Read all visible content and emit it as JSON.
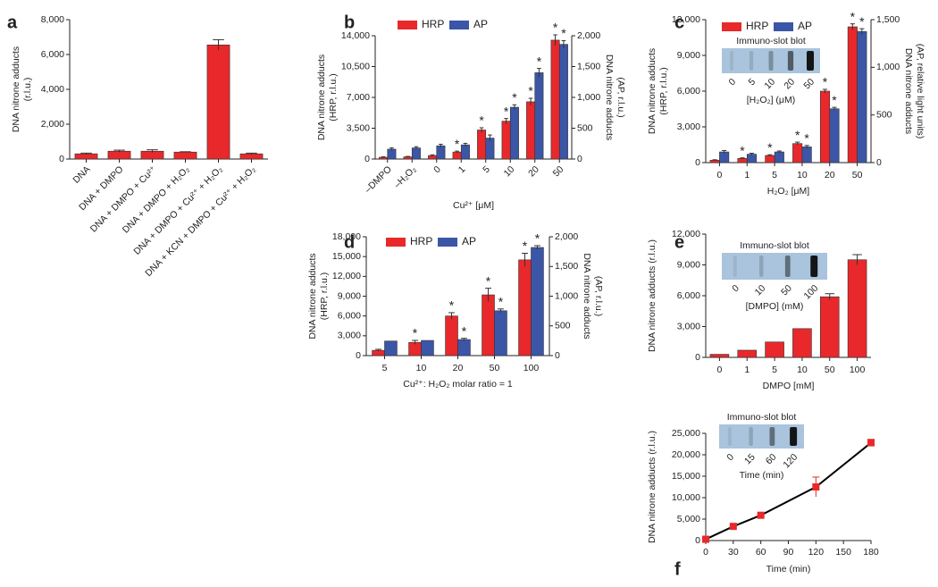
{
  "chart_data": [
    {
      "type": "bar",
      "panel": "a",
      "categories": [
        "DNA",
        "DNA + DMPO",
        "DNA + DMPO + Cu²⁺",
        "DNA + DMPO + H₂O₂",
        "DNA + DMPO + Cu²⁺ + H₂O₂",
        "DNA + KCN + DMPO + Cu²⁺ + H₂O₂"
      ],
      "values": [
        300,
        450,
        450,
        400,
        6550,
        300
      ],
      "errors": [
        40,
        60,
        80,
        20,
        300,
        40
      ],
      "color": "#e8282b",
      "ylabel": [
        "DNA nitrone adducts",
        "(r.l.u.)"
      ],
      "ylim": [
        0,
        8000
      ],
      "yticks": [
        0,
        {
          "value": 2000,
          "label": "2,000"
        },
        {
          "value": 4000,
          "label": "4,000"
        },
        {
          "value": 6000,
          "label": "6,000"
        },
        {
          "value": 8000,
          "label": "8,000"
        }
      ],
      "grid": false
    },
    {
      "type": "bar",
      "panel": "b",
      "categories": [
        "–DMPO",
        "–H₂O₂",
        "0",
        "1",
        "5",
        "10",
        "20",
        "50"
      ],
      "series": [
        {
          "name": "HRP",
          "color": "#e8282b",
          "values": [
            200,
            250,
            400,
            800,
            3300,
            4300,
            6500,
            13500
          ],
          "errors": [
            60,
            50,
            80,
            100,
            250,
            300,
            400,
            600
          ],
          "annotations": [
            null,
            null,
            null,
            "*",
            "*",
            "*",
            "*",
            "*"
          ]
        },
        {
          "name": "AP",
          "color": "#3b56a6",
          "axis": "y2",
          "values": [
            160,
            180,
            215,
            230,
            340,
            840,
            1400,
            1860
          ],
          "errors": [
            20,
            20,
            25,
            25,
            50,
            40,
            70,
            60
          ],
          "annotations": [
            null,
            null,
            null,
            null,
            null,
            "*",
            "*",
            "*"
          ]
        }
      ],
      "xlabel": "Cu²⁺ [μM]",
      "ylabel": [
        "DNA nitrone adducts",
        "(HRP, r.l.u.)"
      ],
      "y2label": [
        "DNA nitrone adducts",
        "(AP, r.l.u.)"
      ],
      "ylim": [
        0,
        14000
      ],
      "yticks": [
        0,
        {
          "value": 3500,
          "label": "3,500"
        },
        {
          "value": 7000,
          "label": "7,000"
        },
        {
          "value": 10500,
          "label": "10,500"
        },
        {
          "value": 14000,
          "label": "14,000"
        }
      ],
      "y2lim": [
        0,
        2000
      ],
      "y2ticks": [
        0,
        500,
        {
          "value": 1000,
          "label": "1,000"
        },
        {
          "value": 1500,
          "label": "1,500"
        },
        {
          "value": 2000,
          "label": "2,000"
        }
      ],
      "grid": false
    },
    {
      "type": "bar",
      "panel": "c",
      "categories": [
        "0",
        "1",
        "5",
        "10",
        "20",
        "50"
      ],
      "series": [
        {
          "name": "HRP",
          "color": "#e8282b",
          "values": [
            200,
            350,
            600,
            1600,
            6000,
            11400
          ],
          "errors": [
            40,
            50,
            60,
            120,
            150,
            250
          ],
          "annotations": [
            null,
            "*",
            "*",
            "*",
            "*",
            "*"
          ]
        },
        {
          "name": "AP",
          "color": "#3b56a6",
          "axis": "y2",
          "values": [
            112,
            88,
            112,
            165,
            565,
            1375
          ],
          "errors": [
            15,
            10,
            10,
            15,
            15,
            30
          ],
          "annotations": [
            null,
            null,
            null,
            "*",
            "*",
            "*"
          ]
        }
      ],
      "xlabel": "H₂O₂ [μM]",
      "ylabel": [
        "DNA nitrone adducts",
        "(HRP, r.l.u.)"
      ],
      "y2label": [
        "DNA nitrone adducts",
        "(AP, relative light units)"
      ],
      "ylim": [
        0,
        12000
      ],
      "yticks": [
        0,
        {
          "value": 3000,
          "label": "3,000"
        },
        {
          "value": 6000,
          "label": "6,000"
        },
        {
          "value": 9000,
          "label": "9,000"
        },
        {
          "value": 12000,
          "label": "12,000"
        }
      ],
      "y2lim": [
        0,
        1500
      ],
      "y2ticks": [
        0,
        500,
        {
          "value": 1000,
          "label": "1,000"
        },
        {
          "value": 1500,
          "label": "1,500"
        }
      ],
      "inset": {
        "title": "Immuno-slot blot",
        "labels": [
          "0",
          "5",
          "10",
          "20",
          "50"
        ],
        "xlabel": "[H₂O₂] (μM)"
      },
      "grid": false
    },
    {
      "type": "bar",
      "panel": "d",
      "categories": [
        "5",
        "10",
        "20",
        "50",
        "100"
      ],
      "series": [
        {
          "name": "HRP",
          "color": "#e8282b",
          "values": [
            800,
            2000,
            6000,
            9200,
            14500
          ],
          "errors": [
            150,
            300,
            500,
            1000,
            1000
          ],
          "annotations": [
            null,
            "*",
            "*",
            "*",
            "*"
          ]
        },
        {
          "name": "AP",
          "color": "#3b56a6",
          "axis": "y2",
          "values": [
            245,
            255,
            270,
            755,
            1820
          ],
          "errors": [
            null,
            null,
            20,
            30,
            30
          ],
          "annotations": [
            null,
            null,
            "*",
            "*",
            "*"
          ]
        }
      ],
      "xlabel": "Cu²⁺: H₂O₂ molar ratio = 1",
      "ylabel": [
        "DNA nitrone adducts",
        "(HRP, r.l.u.)"
      ],
      "y2label": [
        "DNA nitrone adducts",
        "(AP, r.l.u.)"
      ],
      "ylim": [
        0,
        18000
      ],
      "yticks": [
        0,
        {
          "value": 3000,
          "label": "3,000"
        },
        {
          "value": 6000,
          "label": "6,000"
        },
        {
          "value": 9000,
          "label": "9,000"
        },
        {
          "value": 12000,
          "label": "12,000"
        },
        {
          "value": 15000,
          "label": "15,000"
        },
        {
          "value": 18000,
          "label": "18,000"
        }
      ],
      "y2lim": [
        0,
        2000
      ],
      "y2ticks": [
        0,
        500,
        {
          "value": 1000,
          "label": "1,000"
        },
        {
          "value": 1500,
          "label": "1,500"
        },
        {
          "value": 2000,
          "label": "2,000"
        }
      ],
      "grid": false
    },
    {
      "type": "bar",
      "panel": "e",
      "categories": [
        "0",
        "1",
        "5",
        "10",
        "50",
        "100"
      ],
      "values": [
        300,
        700,
        1500,
        2800,
        5900,
        9500
      ],
      "errors": [
        null,
        null,
        null,
        null,
        300,
        500
      ],
      "color": "#e8282b",
      "xlabel": "DMPO [mM]",
      "ylabel": [
        "DNA nitrone adducts (r.l.u.)"
      ],
      "ylim": [
        0,
        12000
      ],
      "yticks": [
        0,
        {
          "value": 3000,
          "label": "3,000"
        },
        {
          "value": 6000,
          "label": "6,000"
        },
        {
          "value": 9000,
          "label": "9,000"
        },
        {
          "value": 12000,
          "label": "12,000"
        }
      ],
      "inset": {
        "title": "Immuno-slot blot",
        "labels": [
          "0",
          "10",
          "50",
          "100"
        ],
        "xlabel": "[DMPO] (mM)"
      },
      "grid": false
    },
    {
      "type": "line",
      "panel": "f",
      "x": [
        0,
        30,
        60,
        120,
        180
      ],
      "values": [
        300,
        3300,
        5900,
        12500,
        22800
      ],
      "errors": [
        200,
        300,
        300,
        2300,
        800
      ],
      "color": "#000000",
      "marker_color": "#e8282b",
      "xlabel": "Time (min)",
      "ylabel": [
        "DNA nitrone adducts (r.l.u.)"
      ],
      "xlim": [
        0,
        180
      ],
      "xticks": [
        0,
        30,
        60,
        90,
        120,
        150,
        180
      ],
      "ylim": [
        0,
        25000
      ],
      "yticks": [
        0,
        {
          "value": 5000,
          "label": "5,000"
        },
        {
          "value": 10000,
          "label": "10,000"
        },
        {
          "value": 15000,
          "label": "15,000"
        },
        {
          "value": 20000,
          "label": "20,000"
        },
        {
          "value": 25000,
          "label": "25,000"
        }
      ],
      "inset": {
        "title": "Immuno-slot blot",
        "labels": [
          "0",
          "15",
          "60",
          "120"
        ],
        "xlabel": "Time (min)"
      },
      "grid": false
    }
  ]
}
